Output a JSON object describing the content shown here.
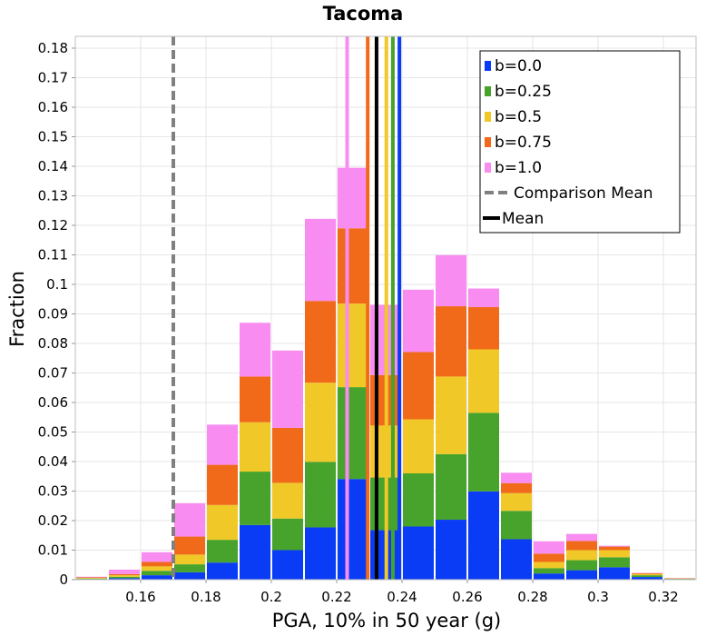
{
  "chart_data": {
    "type": "bar",
    "stacked": true,
    "title": "Tacoma",
    "xlabel": "PGA, 10% in 50 year (g)",
    "ylabel": "Fraction",
    "xlim": [
      0.14,
      0.33
    ],
    "ylim": [
      0,
      0.184
    ],
    "bin_width": 0.01,
    "x_ticks": [
      0.16,
      0.18,
      0.2,
      0.22,
      0.24,
      0.26,
      0.28,
      0.3,
      0.32
    ],
    "x_tick_labels": [
      "0.16",
      "0.18",
      "0.2",
      "0.22",
      "0.24",
      "0.26",
      "0.28",
      "0.3",
      "0.32"
    ],
    "y_ticks": [
      0,
      0.01,
      0.02,
      0.03,
      0.04,
      0.05,
      0.06,
      0.07,
      0.08,
      0.09,
      0.1,
      0.11,
      0.12,
      0.13,
      0.14,
      0.15,
      0.16,
      0.17,
      0.18
    ],
    "y_tick_labels": [
      "0",
      "0.01",
      "0.02",
      "0.03",
      "0.04",
      "0.05",
      "0.06",
      "0.07",
      "0.08",
      "0.09",
      "0.1",
      "0.11",
      "0.12",
      "0.13",
      "0.14",
      "0.15",
      "0.16",
      "0.17",
      "0.18"
    ],
    "bin_centers": [
      0.145,
      0.155,
      0.165,
      0.175,
      0.185,
      0.195,
      0.205,
      0.215,
      0.225,
      0.235,
      0.245,
      0.255,
      0.265,
      0.275,
      0.285,
      0.295,
      0.305,
      0.315,
      0.325
    ],
    "series": [
      {
        "name": "b=0.0",
        "color": "#0a3cf5",
        "values": [
          0.0002,
          0.0005,
          0.0015,
          0.0025,
          0.0058,
          0.0185,
          0.01,
          0.0177,
          0.0341,
          0.0168,
          0.018,
          0.0203,
          0.0299,
          0.0137,
          0.0021,
          0.0032,
          0.0042,
          0.0009,
          0.0002
        ]
      },
      {
        "name": "b=0.25",
        "color": "#47a32c",
        "values": [
          0.0002,
          0.0005,
          0.0015,
          0.0027,
          0.0077,
          0.0181,
          0.0107,
          0.0222,
          0.0311,
          0.0178,
          0.018,
          0.0222,
          0.0266,
          0.0096,
          0.0018,
          0.0034,
          0.0034,
          0.0006,
          0.0001
        ]
      },
      {
        "name": "b=0.25",
        "color": "#47a32c",
        "values": []
      },
      {
        "name": "b=0.5",
        "color": "#f0c828",
        "values": [
          0.0002,
          0.0005,
          0.0015,
          0.0033,
          0.0118,
          0.0167,
          0.0121,
          0.0268,
          0.0283,
          0.0176,
          0.0183,
          0.0263,
          0.0215,
          0.006,
          0.0021,
          0.0034,
          0.0024,
          0.0004,
          0.0001
        ]
      },
      {
        "name": "b=0.75",
        "color": "#f06a1a",
        "values": [
          0.0002,
          0.0004,
          0.0015,
          0.0061,
          0.0136,
          0.0155,
          0.0186,
          0.0277,
          0.0255,
          0.0171,
          0.0228,
          0.0238,
          0.0143,
          0.0034,
          0.0028,
          0.0031,
          0.0012,
          0.0003,
          0.0001
        ]
      },
      {
        "name": "b=1.0",
        "color": "#f88cf0",
        "values": [
          0.0002,
          0.0015,
          0.0033,
          0.0113,
          0.0136,
          0.0182,
          0.0262,
          0.0278,
          0.0205,
          0.0238,
          0.0211,
          0.0173,
          0.0063,
          0.0035,
          0.0042,
          0.0024,
          0.0003,
          0.0001,
          0.0001
        ]
      }
    ],
    "mean_lines": [
      {
        "name": "b=0.0",
        "color": "#0a3cf5",
        "x": 0.2392
      },
      {
        "name": "b=0.25",
        "color": "#47a32c",
        "x": 0.2372
      },
      {
        "name": "b=0.5",
        "color": "#f0c828",
        "x": 0.2352
      },
      {
        "name": "b=0.75",
        "color": "#f06a1a",
        "x": 0.2295
      },
      {
        "name": "b=1.0",
        "color": "#f88cf0",
        "x": 0.2232
      }
    ],
    "overall_mean": {
      "name": "Mean",
      "x": 0.2322,
      "color": "#000000"
    },
    "comparison_mean": {
      "name": "Comparison Mean",
      "x": 0.17,
      "color": "#808080"
    },
    "legend": {
      "position": "top-right",
      "items": [
        {
          "label": "b=0.0",
          "kind": "box",
          "color": "#0a3cf5"
        },
        {
          "label": "b=0.25",
          "kind": "box",
          "color": "#47a32c"
        },
        {
          "label": "b=0.5",
          "kind": "box",
          "color": "#f0c828"
        },
        {
          "label": "b=0.75",
          "kind": "box",
          "color": "#f06a1a"
        },
        {
          "label": "b=1.0",
          "kind": "box",
          "color": "#f88cf0"
        },
        {
          "label": "Comparison Mean",
          "kind": "dashed",
          "color": "#808080"
        },
        {
          "label": "Mean",
          "kind": "line",
          "color": "#000000"
        }
      ]
    },
    "grid": true
  }
}
